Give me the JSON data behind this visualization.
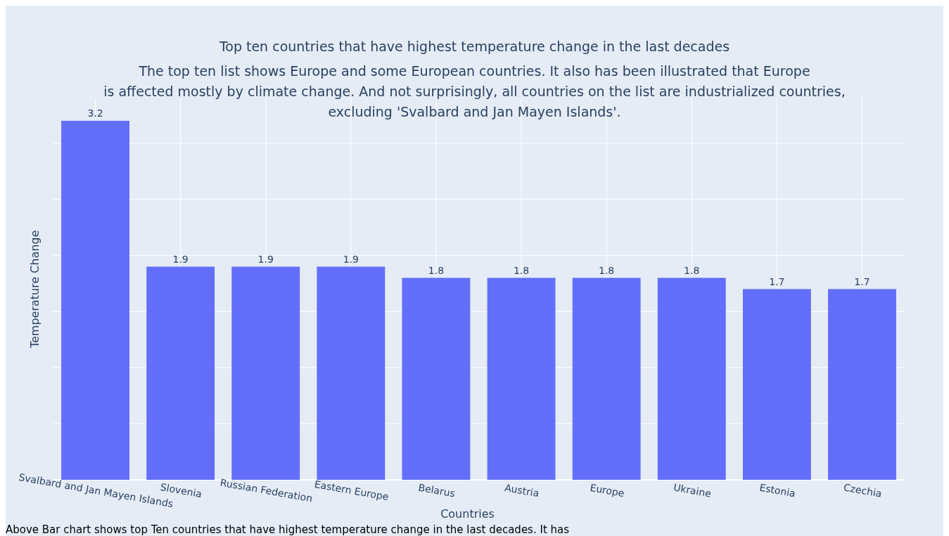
{
  "chart_data": {
    "type": "bar",
    "title": "Top ten countries that have highest temperature change in the last decades",
    "subtitle": "The top ten list shows Europe and some European countries. It also has been illustrated that Europe\nis affected mostly by climate change. And not surprisingly, all countries on the list are industrialized countries,\nexcluding 'Svalbard and Jan Mayen Islands'.",
    "xlabel": "Countries",
    "ylabel": "Temperature Change",
    "categories": [
      "Svalbard and Jan Mayen Islands",
      "Slovenia",
      "Russian Federation",
      "Eastern Europe",
      "Belarus",
      "Austria",
      "Europe",
      "Ukraine",
      "Estonia",
      "Czechia"
    ],
    "values": [
      3.2,
      1.9,
      1.9,
      1.9,
      1.8,
      1.8,
      1.8,
      1.8,
      1.7,
      1.7
    ],
    "color": "#636efa",
    "data_labels": true,
    "ylim": [
      0,
      3.4
    ],
    "yticks": [
      {
        "value": 0,
        "label": null
      },
      {
        "value": 0.5,
        "label": null
      },
      {
        "value": 1,
        "label": null
      },
      {
        "value": 1.5,
        "label": null
      },
      {
        "value": 2,
        "label": null
      },
      {
        "value": 2.5,
        "label": null
      },
      {
        "value": 3,
        "label": null
      }
    ],
    "grid": true,
    "annotations": [
      "Above Bar chart shows top Ten countries that have highest temperature change in the last decades. It has"
    ]
  }
}
